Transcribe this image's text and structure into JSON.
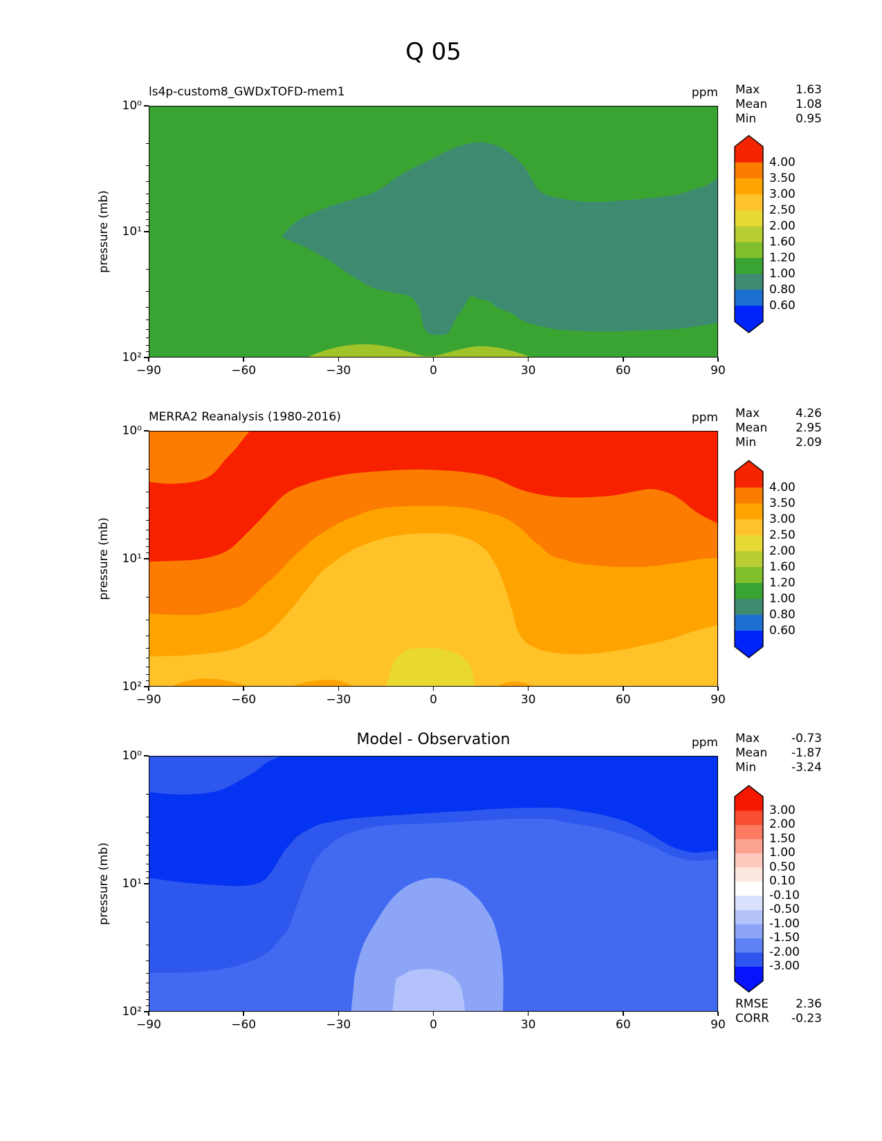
{
  "figure_title": "Q 05",
  "palette": {
    "p1_bg": "#3aa433",
    "p1_teal": "#3e8b72",
    "p1_band": "#a2c42b",
    "p2_red": "#f72100",
    "p2_orange": "#fb7c00",
    "p2_orange2": "#ffa300",
    "p2_amber": "#ffc229",
    "p2_yellow": "#e8d830",
    "p3_darkest": "#0533f2",
    "p3_dark": "#2e57ee",
    "p3_bg": "#416af1",
    "p3_light": "#8ca5f7",
    "p3_lighter": "#b3c2fa"
  },
  "panels": [
    {
      "title": "ls4p-custom8_GWDxTOFD-mem1",
      "units_label": "ppm",
      "y_axis_label": "pressure (mb)",
      "x_tick_labels": [
        "−90",
        "−60",
        "−30",
        "0",
        "30",
        "60",
        "90"
      ],
      "y_tick_labels": [
        "10⁰",
        "10¹",
        "10²"
      ],
      "stats": [
        {
          "label": "Max",
          "value": "1.63"
        },
        {
          "label": "Mean",
          "value": "1.08"
        },
        {
          "label": "Min",
          "value": "0.95"
        }
      ],
      "extra_stats": [],
      "colorbar_labels": [
        "4.00",
        "3.50",
        "3.00",
        "2.50",
        "2.00",
        "1.60",
        "1.20",
        "1.00",
        "0.80",
        "0.60"
      ],
      "colorbar_colors": [
        "#f42500",
        "#fb7d00",
        "#ffa400",
        "#fec32a",
        "#e8d934",
        "#b9ce32",
        "#7fc02c",
        "#3aa433",
        "#3e8b72",
        "#1d6fd1",
        "#0023fa"
      ]
    },
    {
      "title": "MERRA2 Reanalysis (1980-2016)",
      "units_label": "ppm",
      "y_axis_label": "pressure (mb)",
      "x_tick_labels": [
        "−90",
        "−60",
        "−30",
        "0",
        "30",
        "60",
        "90"
      ],
      "y_tick_labels": [
        "10⁰",
        "10¹",
        "10²"
      ],
      "stats": [
        {
          "label": "Max",
          "value": "4.26"
        },
        {
          "label": "Mean",
          "value": "2.95"
        },
        {
          "label": "Min",
          "value": "2.09"
        }
      ],
      "extra_stats": [],
      "colorbar_labels": [
        "4.00",
        "3.50",
        "3.00",
        "2.50",
        "2.00",
        "1.60",
        "1.20",
        "1.00",
        "0.80",
        "0.60"
      ],
      "colorbar_colors": [
        "#f42500",
        "#fb7d00",
        "#ffa400",
        "#fec32a",
        "#e8d934",
        "#b9ce32",
        "#7fc02c",
        "#3aa433",
        "#3e8b72",
        "#1d6fd1",
        "#0023fa"
      ]
    },
    {
      "title": "Model - Observation",
      "units_label": "ppm",
      "y_axis_label": "pressure (mb)",
      "x_tick_labels": [
        "−90",
        "−60",
        "−30",
        "0",
        "30",
        "60",
        "90"
      ],
      "y_tick_labels": [
        "10⁰",
        "10¹",
        "10²"
      ],
      "stats": [
        {
          "label": "Max",
          "value": "-0.73"
        },
        {
          "label": "Mean",
          "value": "-1.87"
        },
        {
          "label": "Min",
          "value": "-3.24"
        }
      ],
      "extra_stats": [
        {
          "label": "RMSE",
          "value": "2.36"
        },
        {
          "label": "CORR",
          "value": "-0.23"
        }
      ],
      "colorbar_labels": [
        "3.00",
        "2.00",
        "1.50",
        "1.00",
        "0.50",
        "0.10",
        "-0.10",
        "-0.50",
        "-1.00",
        "-1.50",
        "-2.00",
        "-3.00"
      ],
      "colorbar_colors": [
        "#f51800",
        "#f94e32",
        "#fb7a61",
        "#fca392",
        "#fdc9bd",
        "#fee7e1",
        "#ffffff",
        "#d9e1fd",
        "#b4c4fa",
        "#8ba4f7",
        "#5e81f3",
        "#2e55ee",
        "#0712fd"
      ]
    }
  ],
  "chart_data": [
    {
      "type": "heatmap",
      "subtype": "filled-contour",
      "title": "ls4p-custom8_GWDxTOFD-mem1",
      "units": "ppm",
      "x_ticks": [
        -90,
        -60,
        -30,
        0,
        30,
        60,
        90
      ],
      "x_range": [
        -90,
        90
      ],
      "ylabel": "pressure (mb)",
      "y_scale": "log",
      "y_range_mb": [
        1,
        100
      ],
      "contour_levels": [
        0.6,
        0.8,
        1.0,
        1.2,
        1.6,
        2.0,
        2.5,
        3.0,
        3.5,
        4.0
      ],
      "stats": {
        "max": 1.63,
        "mean": 1.08,
        "min": 0.95
      },
      "field_summary": [
        "background 1.00-1.20 ppm (green) over most of the domain",
        "0.80-1.00 ppm (teal) lobe from about 45S to 90N between roughly 2 and 60 mb, with a narrow equatorial tongue extending down to about 65 mb",
        "1.20-1.60 ppm (yellow-green) shallow maxima near 100 mb centered around 22S and 15N"
      ],
      "legend_position": "right colorbar, extended arrows both ends"
    },
    {
      "type": "heatmap",
      "subtype": "filled-contour",
      "title": "MERRA2 Reanalysis (1980-2016)",
      "units": "ppm",
      "x_ticks": [
        -90,
        -60,
        -30,
        0,
        30,
        60,
        90
      ],
      "x_range": [
        -90,
        90
      ],
      "ylabel": "pressure (mb)",
      "y_scale": "log",
      "y_range_mb": [
        1,
        100
      ],
      "contour_levels": [
        0.6,
        0.8,
        1.0,
        1.2,
        1.6,
        2.0,
        2.5,
        3.0,
        3.5,
        4.0
      ],
      "stats": {
        "max": 4.26,
        "mean": 2.95,
        "min": 2.09
      },
      "field_summary": [
        "above 4.00 ppm (red) across the upper stratosphere, deepest at southern high latitudes (down to ~10 mb at 90S)",
        "3.50-4.00 ppm patch in the top-left corner (1-2 mb, 90S-55S) and as a band under the red layer",
        "3.00-3.50 ppm band below, dipping over the equator and expanding at northern mid/high latitudes",
        "2.50-3.00 ppm over most of the lower layer",
        "2.00-2.50 ppm (yellow) minimum centered on the equator near 50-100 mb"
      ],
      "legend_position": "right colorbar, extended arrows both ends"
    },
    {
      "type": "heatmap",
      "subtype": "filled-contour",
      "title": "Model - Observation",
      "units": "ppm",
      "x_ticks": [
        -90,
        -60,
        -30,
        0,
        30,
        60,
        90
      ],
      "x_range": [
        -90,
        90
      ],
      "ylabel": "pressure (mb)",
      "y_scale": "log",
      "y_range_mb": [
        1,
        100
      ],
      "contour_levels": [
        -3.0,
        -2.0,
        -1.5,
        -1.0,
        -0.5,
        -0.1,
        0.1,
        0.5,
        1.0,
        1.5,
        2.0,
        3.0
      ],
      "stats": {
        "max": -0.73,
        "mean": -1.87,
        "min": -3.24,
        "rmse": 2.36,
        "corr": -0.23
      },
      "field_summary": [
        "entire field negative (model drier than MERRA2)",
        "below -3 ppm along the top (1-2.5 mb) and over 90S-55S down to ~10 mb, with a tongue to ~5.5 mb at 90N",
        "-3 to -2 ppm band beneath the darkest region and along the left edge down to ~48 mb",
        "-2 to -1.5 ppm over most middle and lower levels",
        "-1.5 to -1 ppm dome over the equator below ~9 mb",
        "-1 to -0.5 ppm core near the equator around 50-100 mb"
      ],
      "legend_position": "right colorbar, extended arrows both ends"
    }
  ]
}
